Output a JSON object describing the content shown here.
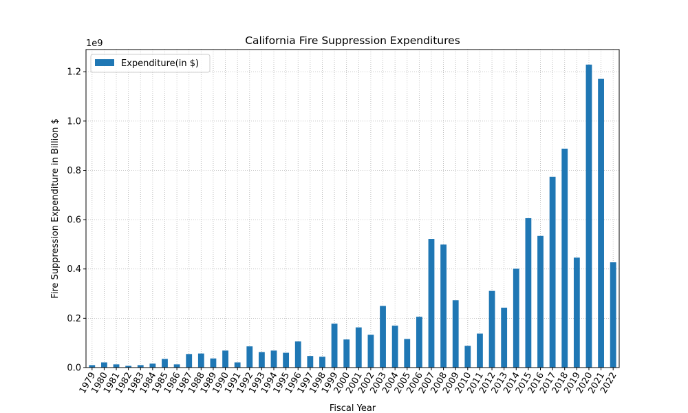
{
  "chart_data": {
    "type": "bar",
    "title": "California Fire Suppression Expenditures",
    "xlabel": "Fiscal Year",
    "ylabel": "Fire Suppression Expenditure in Billion $",
    "y_offset_label": "1e9",
    "y_scale": 1000000000,
    "ylim": [
      0,
      1290000000
    ],
    "yticks": [
      0,
      200000000,
      400000000,
      600000000,
      800000000,
      1000000000,
      1200000000
    ],
    "ytick_labels": [
      "0.0",
      "0.2",
      "0.4",
      "0.6",
      "0.8",
      "1.0",
      "1.2"
    ],
    "grid": true,
    "legend_position": "top-left",
    "categories": [
      "1979",
      "1980",
      "1981",
      "1982",
      "1983",
      "1984",
      "1985",
      "1986",
      "1987",
      "1988",
      "1989",
      "1990",
      "1991",
      "1992",
      "1993",
      "1994",
      "1995",
      "1996",
      "1997",
      "1998",
      "1999",
      "2000",
      "2001",
      "2002",
      "2003",
      "2004",
      "2005",
      "2006",
      "2007",
      "2008",
      "2009",
      "2010",
      "2011",
      "2012",
      "2013",
      "2014",
      "2015",
      "2016",
      "2017",
      "2018",
      "2019",
      "2020",
      "2021",
      "2022"
    ],
    "series": [
      {
        "name": "Expenditure(in $)",
        "color": "#1f77b4",
        "values": [
          10000000,
          21000000,
          13000000,
          7000000,
          10000000,
          16000000,
          35000000,
          13000000,
          55000000,
          57000000,
          37000000,
          69000000,
          21000000,
          86000000,
          63000000,
          69000000,
          60000000,
          106000000,
          47000000,
          44000000,
          178000000,
          114000000,
          163000000,
          133000000,
          250000000,
          170000000,
          116000000,
          206000000,
          522000000,
          499000000,
          273000000,
          88000000,
          138000000,
          311000000,
          243000000,
          401000000,
          606000000,
          534000000,
          774000000,
          888000000,
          446000000,
          1229000000,
          1171000000,
          427000000
        ]
      }
    ]
  }
}
